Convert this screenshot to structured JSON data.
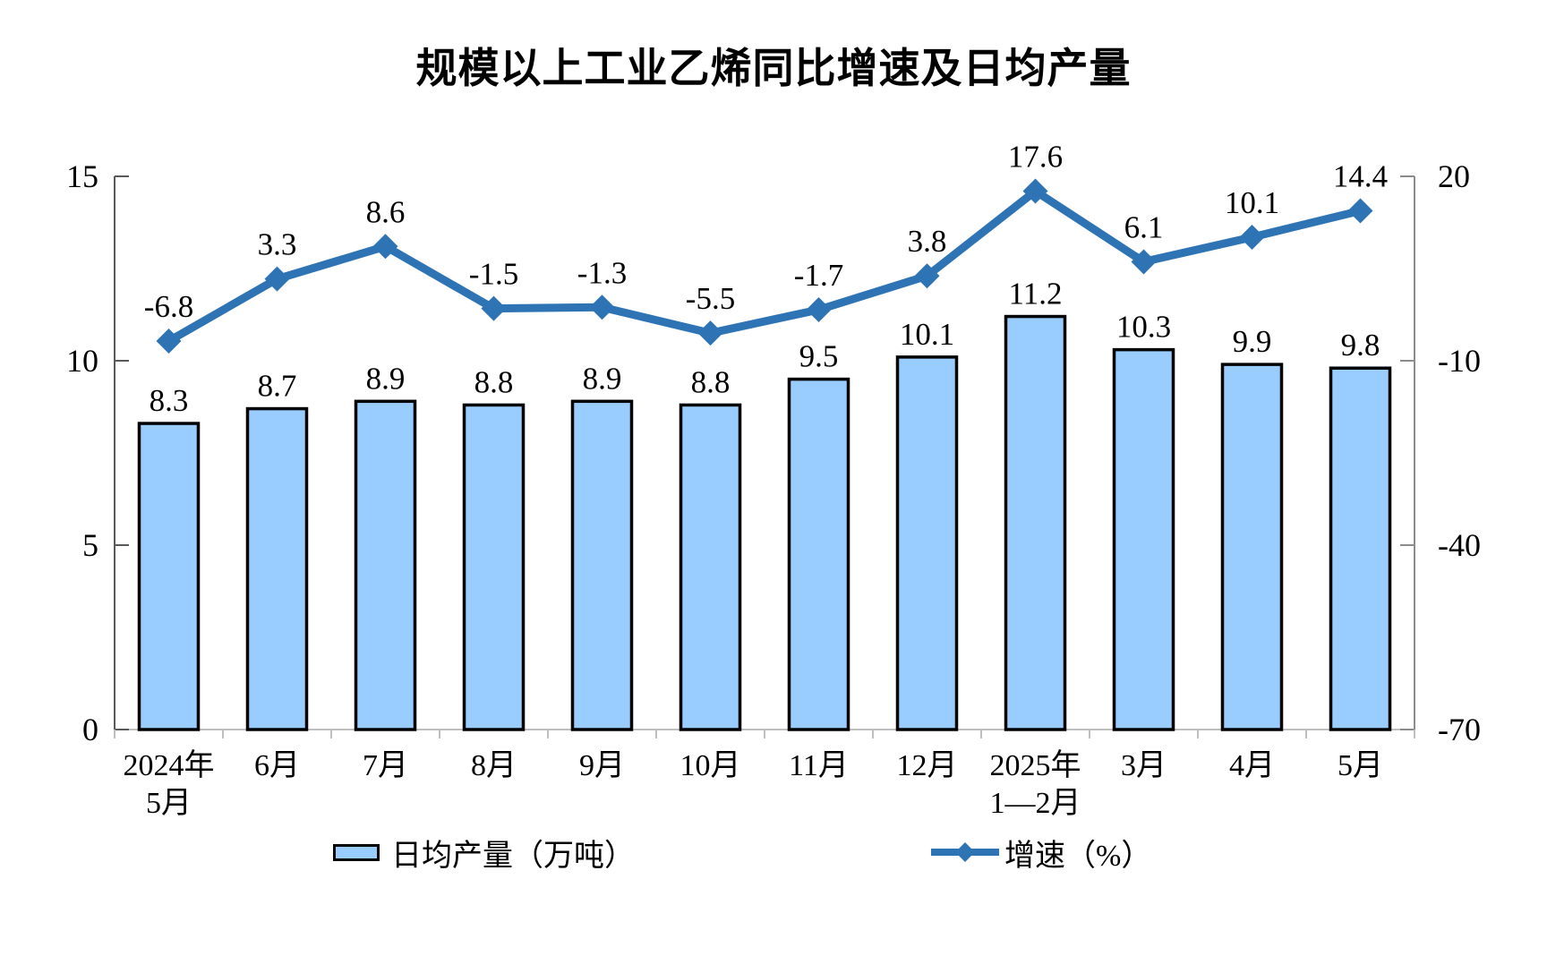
{
  "title": "规模以上工业乙烯同比增速及日均产量",
  "legend": {
    "bar_label": "日均产量（万吨）",
    "line_label": "增速（%）"
  },
  "colors": {
    "bar_fill": "#99CCFF",
    "bar_border": "#000000",
    "line": "#2E74B5"
  },
  "chart_data": {
    "type": "bar+line combo",
    "categories": [
      "2024年5月",
      "6月",
      "7月",
      "8月",
      "9月",
      "10月",
      "11月",
      "12月",
      "2025年1—2月",
      "3月",
      "4月",
      "5月"
    ],
    "category_lines": [
      [
        "2024年",
        "5月"
      ],
      [
        "6月"
      ],
      [
        "7月"
      ],
      [
        "8月"
      ],
      [
        "9月"
      ],
      [
        "10月"
      ],
      [
        "11月"
      ],
      [
        "12月"
      ],
      [
        "2025年",
        "1—2月"
      ],
      [
        "3月"
      ],
      [
        "4月"
      ],
      [
        "5月"
      ]
    ],
    "series": [
      {
        "name": "日均产量（万吨）",
        "type": "bar",
        "axis": "left",
        "values": [
          8.3,
          8.7,
          8.9,
          8.8,
          8.9,
          8.8,
          9.5,
          10.1,
          11.2,
          10.3,
          9.9,
          9.8
        ]
      },
      {
        "name": "增速（%）",
        "type": "line",
        "axis": "right",
        "values": [
          -6.8,
          3.3,
          8.6,
          -1.5,
          -1.3,
          -5.5,
          -1.7,
          3.8,
          17.6,
          6.1,
          10.1,
          14.4
        ]
      }
    ],
    "left_axis": {
      "min": 0,
      "max": 15,
      "ticks": [
        0,
        5,
        10,
        15
      ],
      "tick_labels": [
        "0",
        "5",
        "10",
        "15"
      ]
    },
    "right_axis": {
      "min": -70,
      "max": 20,
      "ticks": [
        -70,
        -40,
        -10,
        20
      ],
      "tick_labels": [
        "-70",
        "-40",
        "-10",
        "20"
      ]
    },
    "grid": false,
    "legend_position": "bottom"
  }
}
